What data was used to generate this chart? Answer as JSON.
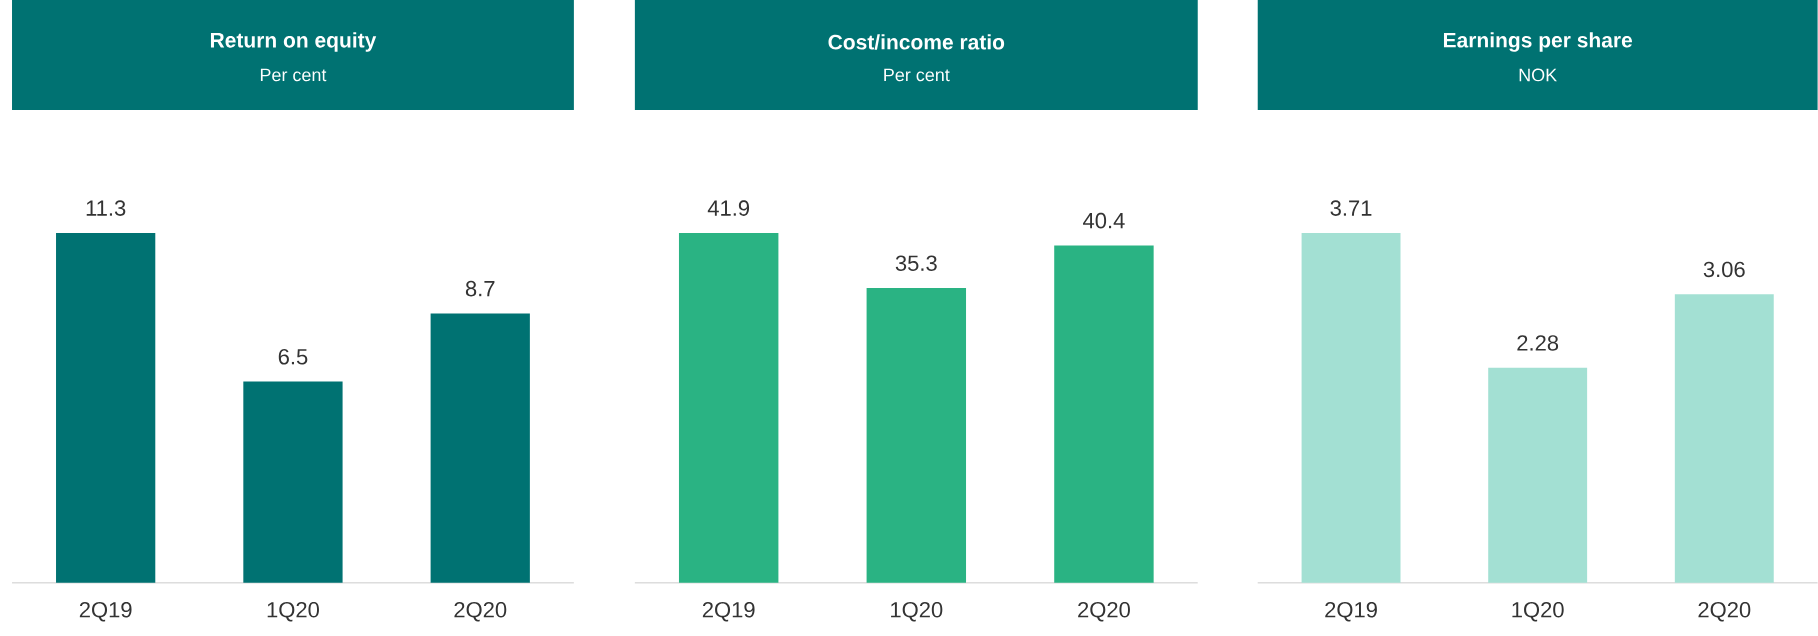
{
  "chart_data": [
    {
      "type": "bar",
      "title": "Return on equity",
      "subtitle": "Per cent",
      "categories": [
        "2Q19",
        "1Q20",
        "2Q20"
      ],
      "values": [
        11.3,
        6.5,
        8.7
      ],
      "color": "#007272",
      "data_labels": true
    },
    {
      "type": "bar",
      "title": "Cost/income ratio",
      "subtitle": "Per cent",
      "categories": [
        "2Q19",
        "1Q20",
        "2Q20"
      ],
      "values": [
        41.9,
        35.3,
        40.4
      ],
      "color": "#2ab383",
      "data_labels": true
    },
    {
      "type": "bar",
      "title": "Earnings per share",
      "subtitle": "NOK",
      "categories": [
        "2Q19",
        "1Q20",
        "2Q20"
      ],
      "values": [
        3.71,
        2.28,
        3.06
      ],
      "color": "#a3e0d3",
      "data_labels": true
    }
  ]
}
